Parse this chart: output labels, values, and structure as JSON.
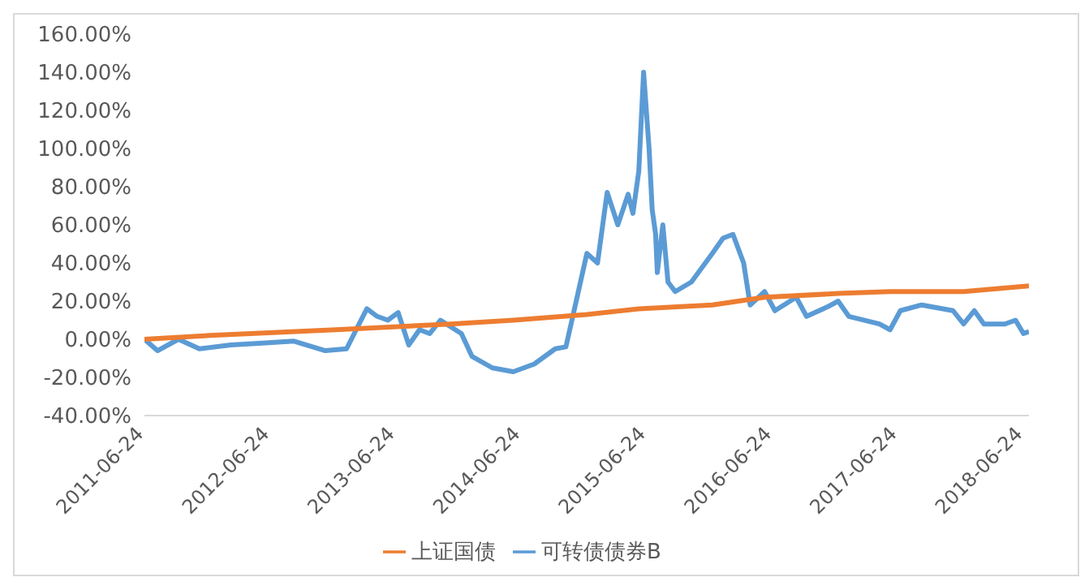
{
  "chart_data": {
    "type": "line",
    "legend": "bottom",
    "grid": false,
    "marker": "none",
    "line_style": "solid",
    "xlim": [
      "2011-06-24",
      "2018-07-10"
    ],
    "xticks": [
      "2011-06-24",
      "2012-06-24",
      "2013-06-24",
      "2014-06-24",
      "2015-06-24",
      "2016-06-24",
      "2017-06-24",
      "2018-06-24"
    ],
    "ylim": [
      -40,
      160
    ],
    "yticks": [
      {
        "value": -40,
        "label": "-40.00%"
      },
      {
        "value": -20,
        "label": "-20.00%"
      },
      {
        "value": 0,
        "label": "0.00%"
      },
      {
        "value": 20,
        "label": "20.00%"
      },
      {
        "value": 40,
        "label": "40.00%"
      },
      {
        "value": 60,
        "label": "60.00%"
      },
      {
        "value": 80,
        "label": "80.00%"
      },
      {
        "value": 100,
        "label": "100.00%"
      },
      {
        "value": 120,
        "label": "120.00%"
      },
      {
        "value": 140,
        "label": "140.00%"
      },
      {
        "value": 160,
        "label": "160.00%"
      }
    ],
    "series": [
      {
        "name": "可转债债券B",
        "color": "#5b9bd5",
        "x": [
          "2011-06-24",
          "2011-08",
          "2011-10",
          "2011-12",
          "2012-03",
          "2012-06",
          "2012-09",
          "2012-12",
          "2013-02",
          "2013-03",
          "2013-04",
          "2013-05",
          "2013-06",
          "2013-07",
          "2013-08",
          "2013-09",
          "2013-10",
          "2013-11",
          "2014-01",
          "2014-02",
          "2014-04",
          "2014-06",
          "2014-08",
          "2014-10",
          "2014-11",
          "2014-12",
          "2015-01",
          "2015-02",
          "2015-03",
          "2015-04",
          "2015-05",
          "2015-05-15",
          "2015-06-01",
          "2015-06-15",
          "2015-07-01",
          "2015-07-10",
          "2015-07-20",
          "2015-07-25",
          "2015-08-10",
          "2015-08-25",
          "2015-09-15",
          "2015-11",
          "2016-01",
          "2016-02",
          "2016-03",
          "2016-04",
          "2016-04-20",
          "2016-06",
          "2016-07",
          "2016-09",
          "2016-10",
          "2016-12",
          "2017-01",
          "2017-02",
          "2017-05",
          "2017-06",
          "2017-07",
          "2017-09",
          "2017-12",
          "2018-01",
          "2018-02",
          "2018-03",
          "2018-05",
          "2018-06",
          "2018-06-24",
          "2018-07-10"
        ],
        "values": [
          0,
          -6,
          0,
          -5,
          -3,
          -2,
          -1,
          -6,
          -5,
          5,
          16,
          12,
          10,
          14,
          -3,
          5,
          3,
          10,
          3,
          -9,
          -15,
          -17,
          -13,
          -5,
          -4,
          20,
          45,
          40,
          77,
          60,
          76,
          66,
          88,
          140,
          100,
          68,
          55,
          35,
          60,
          30,
          25,
          30,
          45,
          53,
          55,
          40,
          18,
          25,
          15,
          22,
          12,
          17,
          20,
          12,
          8,
          5,
          15,
          18,
          15,
          8,
          15,
          8,
          8,
          10,
          3,
          4
        ]
      },
      {
        "name": "上证国债",
        "color": "#ed7d31",
        "x": [
          "2011-06-24",
          "2012-01",
          "2013-01",
          "2013-12",
          "2014-06",
          "2015-01",
          "2015-06",
          "2016-01",
          "2016-06",
          "2017-01",
          "2017-06",
          "2018-01",
          "2018-07-10"
        ],
        "values": [
          0,
          2,
          5,
          8,
          10,
          13,
          16,
          18,
          22,
          24,
          25,
          25,
          28
        ]
      }
    ]
  }
}
